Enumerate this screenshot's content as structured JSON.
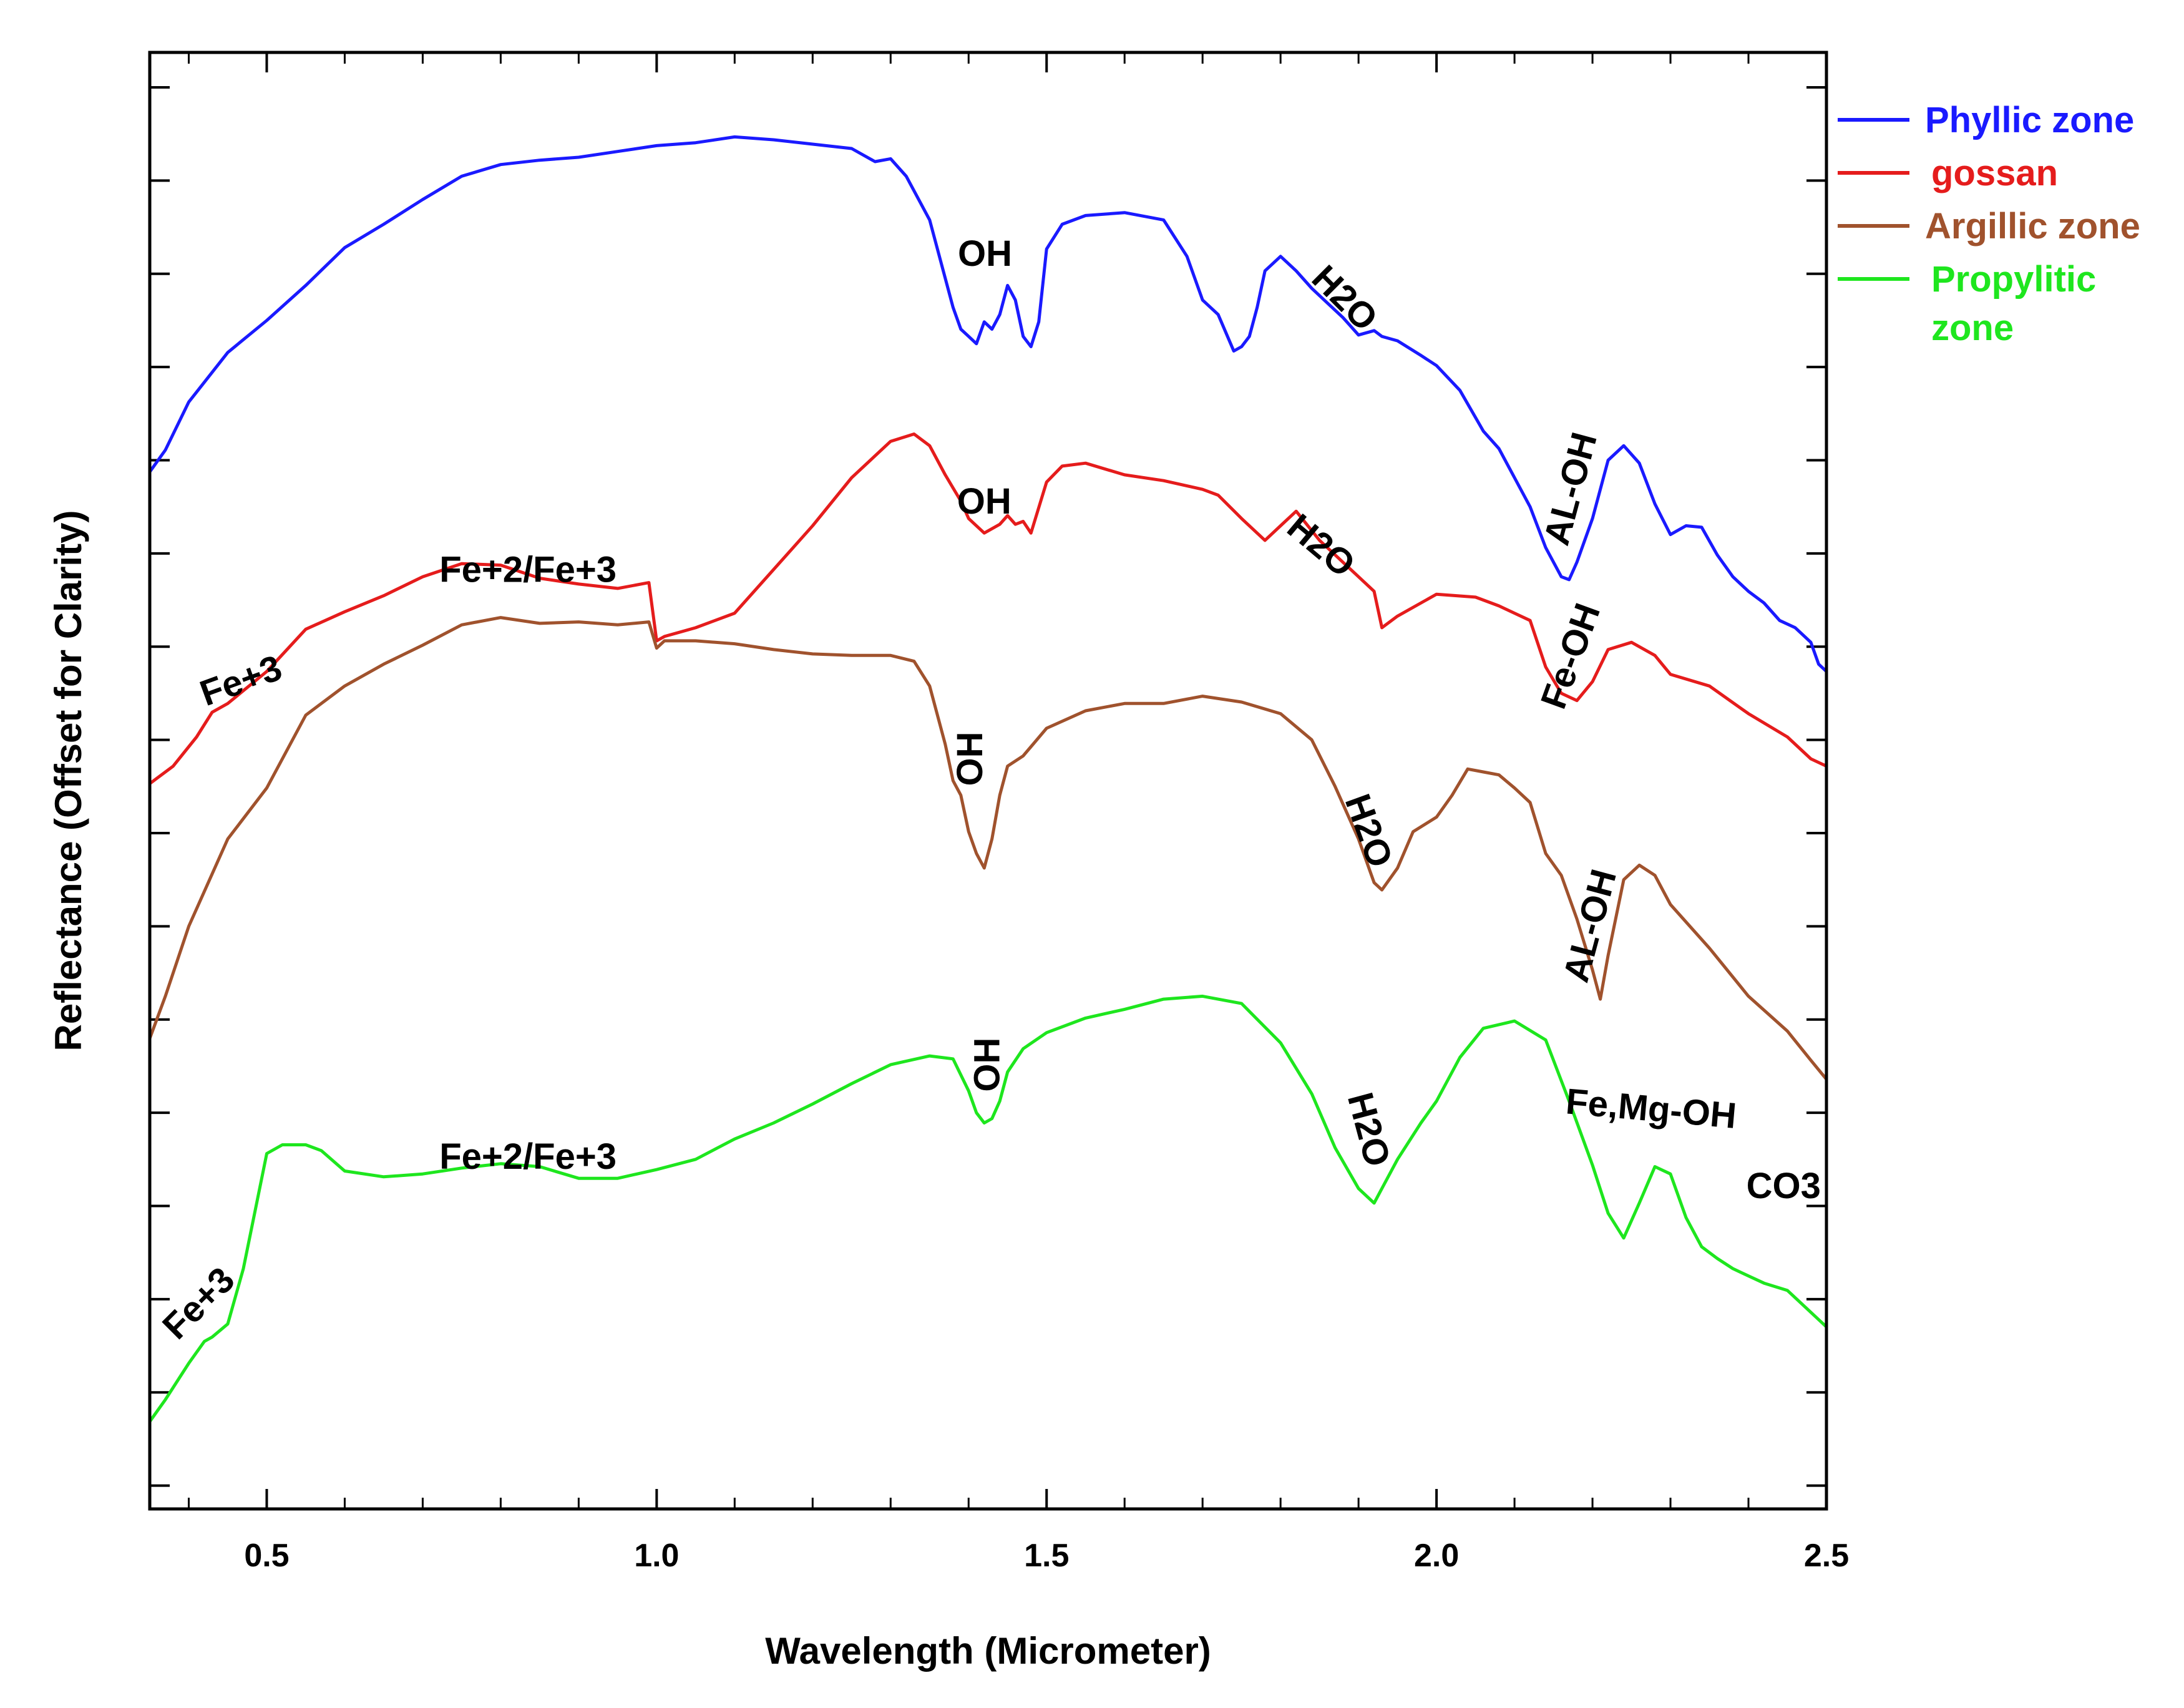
{
  "chart_data": {
    "type": "line",
    "title": "",
    "xlabel": "Wavelength (Micrometer)",
    "ylabel": "Reflectance (Offset for Clarity)",
    "xlim": [
      0.35,
      2.5
    ],
    "ylim": [
      0,
      100
    ],
    "x_ticks": [
      {
        "value": 0.5,
        "label": "0.5"
      },
      {
        "value": 1.0,
        "label": "1.0"
      },
      {
        "value": 1.5,
        "label": "1.5"
      },
      {
        "value": 2.0,
        "label": "2.0"
      },
      {
        "value": 2.5,
        "label": "2.5"
      }
    ],
    "y_ticks_unlabeled": [
      1.6,
      8.0,
      14.4,
      20.8,
      27.2,
      33.6,
      40.0,
      46.4,
      52.8,
      59.2,
      65.6,
      72.0,
      78.4,
      84.8,
      91.2,
      97.6
    ],
    "grid": false,
    "legend_position": "outside-right-top",
    "series": [
      {
        "name": "Phyllic zone",
        "legend_label": "Phyllic zone",
        "color": "#1a1aff",
        "x": [
          0.35,
          0.37,
          0.4,
          0.45,
          0.5,
          0.55,
          0.6,
          0.65,
          0.7,
          0.75,
          0.8,
          0.85,
          0.9,
          0.95,
          1.0,
          1.05,
          1.1,
          1.15,
          1.2,
          1.25,
          1.28,
          1.3,
          1.32,
          1.35,
          1.37,
          1.38,
          1.39,
          1.4,
          1.41,
          1.42,
          1.43,
          1.44,
          1.45,
          1.46,
          1.47,
          1.48,
          1.49,
          1.5,
          1.52,
          1.55,
          1.6,
          1.65,
          1.68,
          1.7,
          1.72,
          1.74,
          1.75,
          1.76,
          1.77,
          1.78,
          1.8,
          1.82,
          1.84,
          1.86,
          1.88,
          1.9,
          1.92,
          1.93,
          1.95,
          1.98,
          2.0,
          2.03,
          2.06,
          2.08,
          2.1,
          2.12,
          2.14,
          2.16,
          2.17,
          2.18,
          2.2,
          2.22,
          2.24,
          2.26,
          2.28,
          2.3,
          2.32,
          2.34,
          2.36,
          2.38,
          2.4,
          2.42,
          2.44,
          2.46,
          2.48,
          2.49,
          2.5
        ],
        "y": [
          71.2,
          72.7,
          76.0,
          79.4,
          81.6,
          84.0,
          86.6,
          88.2,
          89.9,
          91.5,
          92.3,
          92.6,
          92.8,
          93.2,
          93.6,
          93.8,
          94.2,
          94.0,
          93.7,
          93.4,
          92.5,
          92.7,
          91.5,
          88.5,
          84.5,
          82.5,
          81.0,
          80.5,
          80.0,
          81.5,
          81.0,
          82.0,
          84.0,
          83.0,
          80.5,
          79.8,
          81.5,
          86.5,
          88.2,
          88.8,
          89.0,
          88.5,
          86.0,
          83.0,
          82.0,
          79.5,
          79.8,
          80.5,
          82.5,
          85.0,
          86.0,
          85.0,
          83.8,
          82.8,
          81.8,
          80.6,
          80.9,
          80.5,
          80.2,
          79.2,
          78.5,
          76.8,
          74.0,
          72.8,
          70.8,
          68.8,
          66.0,
          64.0,
          63.8,
          65.0,
          68.0,
          72.0,
          73.0,
          71.8,
          69.0,
          66.9,
          67.5,
          67.4,
          65.5,
          64.0,
          63.0,
          62.2,
          61.0,
          60.5,
          59.5,
          58.0,
          57.5
        ]
      },
      {
        "name": "gossan",
        "legend_label": "gossan",
        "color": "#e51c1c",
        "x": [
          0.35,
          0.38,
          0.41,
          0.43,
          0.45,
          0.5,
          0.55,
          0.6,
          0.65,
          0.7,
          0.75,
          0.8,
          0.85,
          0.9,
          0.95,
          0.99,
          1.0,
          1.01,
          1.05,
          1.1,
          1.15,
          1.2,
          1.25,
          1.3,
          1.33,
          1.35,
          1.37,
          1.39,
          1.4,
          1.42,
          1.44,
          1.45,
          1.46,
          1.47,
          1.48,
          1.5,
          1.52,
          1.55,
          1.6,
          1.65,
          1.7,
          1.72,
          1.75,
          1.78,
          1.8,
          1.82,
          1.85,
          1.88,
          1.9,
          1.92,
          1.93,
          1.95,
          2.0,
          2.05,
          2.08,
          2.1,
          2.12,
          2.14,
          2.16,
          2.18,
          2.2,
          2.22,
          2.25,
          2.28,
          2.3,
          2.35,
          2.4,
          2.45,
          2.48,
          2.5
        ],
        "y": [
          49.8,
          51.0,
          53.0,
          54.7,
          55.3,
          57.5,
          60.4,
          61.6,
          62.7,
          64.0,
          64.9,
          64.8,
          63.9,
          63.5,
          63.2,
          63.6,
          59.6,
          59.9,
          60.5,
          61.5,
          64.5,
          67.5,
          70.8,
          73.3,
          73.8,
          73.0,
          71.0,
          69.2,
          68.0,
          67.0,
          67.6,
          68.2,
          67.6,
          67.8,
          67.0,
          70.5,
          71.6,
          71.8,
          71.0,
          70.6,
          70.0,
          69.6,
          68.0,
          66.5,
          67.5,
          68.5,
          66.5,
          65.0,
          64.0,
          63.0,
          60.5,
          61.3,
          62.8,
          62.6,
          62.0,
          61.5,
          61.0,
          57.8,
          56.0,
          55.5,
          56.8,
          59.0,
          59.5,
          58.6,
          57.3,
          56.5,
          54.6,
          53.0,
          51.5,
          51.0
        ]
      },
      {
        "name": "Argillic zone",
        "legend_label": "Argillic zone",
        "color": "#a0522d",
        "x": [
          0.35,
          0.37,
          0.4,
          0.45,
          0.5,
          0.55,
          0.6,
          0.65,
          0.7,
          0.75,
          0.8,
          0.85,
          0.9,
          0.95,
          0.99,
          1.0,
          1.01,
          1.05,
          1.1,
          1.15,
          1.2,
          1.25,
          1.3,
          1.33,
          1.35,
          1.37,
          1.38,
          1.39,
          1.4,
          1.41,
          1.42,
          1.43,
          1.44,
          1.45,
          1.47,
          1.5,
          1.55,
          1.6,
          1.65,
          1.7,
          1.75,
          1.8,
          1.84,
          1.87,
          1.9,
          1.92,
          1.93,
          1.95,
          1.97,
          2.0,
          2.02,
          2.04,
          2.06,
          2.08,
          2.1,
          2.12,
          2.14,
          2.16,
          2.18,
          2.2,
          2.21,
          2.22,
          2.24,
          2.26,
          2.28,
          2.3,
          2.35,
          2.4,
          2.45,
          2.48,
          2.5
        ],
        "y": [
          32.3,
          35.2,
          40.0,
          46.0,
          49.5,
          54.5,
          56.5,
          58.0,
          59.3,
          60.7,
          61.2,
          60.8,
          60.9,
          60.7,
          60.9,
          59.1,
          59.6,
          59.6,
          59.4,
          59.0,
          58.7,
          58.6,
          58.6,
          58.2,
          56.5,
          52.5,
          50.0,
          49.0,
          46.5,
          45.0,
          44.0,
          46.0,
          49.0,
          51.0,
          51.7,
          53.6,
          54.8,
          55.3,
          55.3,
          55.8,
          55.4,
          54.6,
          52.8,
          49.6,
          46.0,
          43.0,
          42.5,
          44.0,
          46.5,
          47.5,
          49.0,
          50.8,
          50.6,
          50.4,
          49.5,
          48.5,
          45.0,
          43.5,
          40.5,
          37.0,
          35.0,
          38.0,
          43.2,
          44.2,
          43.5,
          41.5,
          38.5,
          35.2,
          32.8,
          30.8,
          29.5
        ]
      },
      {
        "name": "Propylitic zone",
        "legend_label": "Propylitic\nzone",
        "color": "#1ee61e",
        "x": [
          0.35,
          0.37,
          0.4,
          0.42,
          0.43,
          0.45,
          0.47,
          0.5,
          0.52,
          0.55,
          0.57,
          0.6,
          0.65,
          0.7,
          0.75,
          0.8,
          0.85,
          0.9,
          0.95,
          1.0,
          1.05,
          1.1,
          1.15,
          1.2,
          1.25,
          1.3,
          1.35,
          1.38,
          1.4,
          1.41,
          1.42,
          1.43,
          1.44,
          1.45,
          1.47,
          1.5,
          1.55,
          1.6,
          1.65,
          1.7,
          1.75,
          1.8,
          1.84,
          1.87,
          1.9,
          1.92,
          1.93,
          1.95,
          1.98,
          2.0,
          2.03,
          2.06,
          2.1,
          2.14,
          2.17,
          2.2,
          2.22,
          2.24,
          2.26,
          2.28,
          2.3,
          2.32,
          2.34,
          2.36,
          2.38,
          2.4,
          2.42,
          2.45,
          2.48,
          2.5
        ],
        "y": [
          6.0,
          7.5,
          10.0,
          11.5,
          11.8,
          12.7,
          16.5,
          24.4,
          25.0,
          25.0,
          24.6,
          23.2,
          22.8,
          23.0,
          23.4,
          23.7,
          23.5,
          22.7,
          22.7,
          23.3,
          24.0,
          25.4,
          26.5,
          27.8,
          29.2,
          30.5,
          31.1,
          30.9,
          28.7,
          27.2,
          26.5,
          26.8,
          28.0,
          30.0,
          31.6,
          32.7,
          33.7,
          34.3,
          35.0,
          35.2,
          34.7,
          32.0,
          28.5,
          24.8,
          22.0,
          21.0,
          22.0,
          24.0,
          26.5,
          28.0,
          31.0,
          33.0,
          33.5,
          32.2,
          28.0,
          23.6,
          20.3,
          18.6,
          21.0,
          23.5,
          23.0,
          20.0,
          18.0,
          17.2,
          16.5,
          16.0,
          15.5,
          15.0,
          13.5,
          12.5
        ]
      }
    ],
    "annotations": [
      {
        "text": "OH",
        "x": 1.421,
        "y": 86.0,
        "rotation": 0
      },
      {
        "text": "H2O",
        "x": 1.88,
        "y": 83.0,
        "rotation": 45
      },
      {
        "text": "AL-OH",
        "x": 2.175,
        "y": 70.0,
        "rotation": -75
      },
      {
        "text": "OH",
        "x": 1.42,
        "y": 69.0,
        "rotation": 0
      },
      {
        "text": "Fe+2/Fe+3",
        "x": 0.835,
        "y": 64.3,
        "rotation": 0
      },
      {
        "text": "Fe+3",
        "x": 0.468,
        "y": 56.7,
        "rotation": -20
      },
      {
        "text": "H2O",
        "x": 1.85,
        "y": 66.0,
        "rotation": 40
      },
      {
        "text": "Fe-OH",
        "x": 2.175,
        "y": 58.5,
        "rotation": -70
      },
      {
        "text": "OH",
        "x": 1.405,
        "y": 51.5,
        "rotation": -90
      },
      {
        "text": "H2O",
        "x": 1.91,
        "y": 46.5,
        "rotation": 70
      },
      {
        "text": "AL-OH",
        "x": 2.2,
        "y": 40.0,
        "rotation": -75
      },
      {
        "text": "OH",
        "x": 1.427,
        "y": 30.5,
        "rotation": -90
      },
      {
        "text": "H2O",
        "x": 1.91,
        "y": 26.0,
        "rotation": 75
      },
      {
        "text": "Fe+2/Fe+3",
        "x": 0.835,
        "y": 24.0,
        "rotation": 0
      },
      {
        "text": "Fe,Mg-OH",
        "x": 2.275,
        "y": 27.3,
        "rotation": 5
      },
      {
        "text": "CO3",
        "x": 2.445,
        "y": 22.0,
        "rotation": 0
      },
      {
        "text": "Fe+3",
        "x": 0.415,
        "y": 14.0,
        "rotation": -45
      }
    ]
  }
}
